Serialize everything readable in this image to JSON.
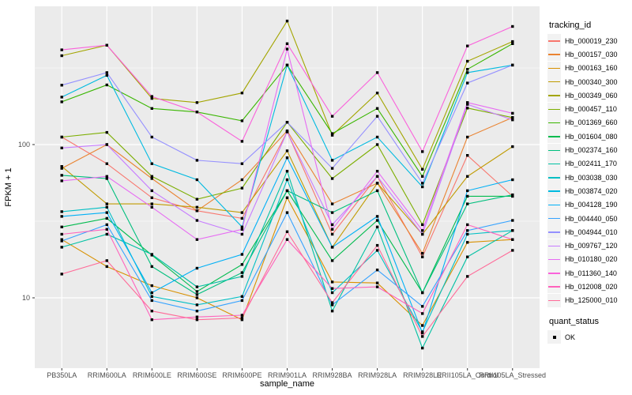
{
  "chart_data": {
    "type": "line",
    "title": "",
    "xlabel": "sample_name",
    "ylabel": "FPKM + 1",
    "y_scale": "log10",
    "y_ticks": [
      10,
      100
    ],
    "y_tick_labels": [
      "10",
      "100"
    ],
    "ylim": [
      3.5,
      800
    ],
    "grid": true,
    "panel_bg": "#EBEBEB",
    "grid_color": "#FFFFFF",
    "point_shape": "square",
    "point_color": "#000000",
    "categories": [
      "PB350LA",
      "RRIM600LA",
      "RRIM600LE",
      "RRIM600SE",
      "RRIM600PE",
      "RRIM901LA",
      "RRIM928BA",
      "RRIM928LA",
      "RRIM928LE",
      "RRII105LA_Control",
      "RRII105LA_Stressed"
    ],
    "series": [
      {
        "name": "Hb_000019_230",
        "color": "#F8766D",
        "values": [
          112,
          75,
          45,
          37,
          33,
          121,
          26,
          62,
          18.5,
          85,
          46
        ]
      },
      {
        "name": "Hb_000157_030",
        "color": "#EA8331",
        "values": [
          70,
          100,
          60,
          37,
          59,
          123,
          41,
          56,
          19.5,
          112,
          150
        ]
      },
      {
        "name": "Hb_000163_160",
        "color": "#D89000",
        "values": [
          24,
          16,
          12,
          10,
          7.2,
          45,
          12.7,
          12.5,
          6.6,
          23,
          24
        ]
      },
      {
        "name": "Hb_000340_300",
        "color": "#C09B00",
        "values": [
          72,
          41,
          41,
          39,
          36,
          91,
          21.4,
          56,
          26,
          62,
          97
        ]
      },
      {
        "name": "Hb_000349_060",
        "color": "#A3A500",
        "values": [
          380,
          445,
          200,
          188,
          217,
          640,
          115,
          217,
          69,
          350,
          470
        ]
      },
      {
        "name": "Hb_000457_110",
        "color": "#7CAE00",
        "values": [
          112,
          120,
          62,
          44,
          52,
          140,
          60,
          100,
          30,
          173,
          150
        ]
      },
      {
        "name": "Hb_001369_660",
        "color": "#39B600",
        "values": [
          190,
          245,
          172,
          163,
          143,
          330,
          118,
          172,
          62,
          310,
          455
        ]
      },
      {
        "name": "Hb_001604_080",
        "color": "#00BB4E",
        "values": [
          29,
          33,
          19,
          11,
          16.5,
          50,
          17.5,
          32,
          10.8,
          46,
          46
        ]
      },
      {
        "name": "Hb_002374_160",
        "color": "#00BF7D",
        "values": [
          63,
          60,
          16,
          10.5,
          14.6,
          50,
          36,
          50,
          10.8,
          41,
          47
        ]
      },
      {
        "name": "Hb_002411_170",
        "color": "#00C1A3",
        "values": [
          21.4,
          26,
          19.2,
          11.8,
          13.8,
          67,
          8.2,
          29,
          4.7,
          18.5,
          27.5
        ]
      },
      {
        "name": "Hb_003038_030",
        "color": "#00BFC4",
        "values": [
          36.5,
          39,
          10.2,
          9,
          10.2,
          59,
          10.8,
          20.4,
          6,
          26,
          27.5
        ]
      },
      {
        "name": "Hb_003874_020",
        "color": "#00BAE0",
        "values": [
          204,
          283,
          75,
          59,
          29,
          330,
          79,
          112,
          53,
          295,
          330
        ]
      },
      {
        "name": "Hb_004128_190",
        "color": "#00B0F6",
        "values": [
          34,
          36,
          10.8,
          15.6,
          19.2,
          82,
          21.4,
          34,
          5.9,
          50,
          59
        ]
      },
      {
        "name": "Hb_004440_050",
        "color": "#35A2FF",
        "values": [
          23.5,
          30,
          9.6,
          8.2,
          9.6,
          36,
          9,
          15.2,
          8.8,
          27.5,
          32
        ]
      },
      {
        "name": "Hb_004944_010",
        "color": "#9590FF",
        "values": [
          244,
          295,
          112,
          79,
          75,
          140,
          70,
          153,
          56,
          252,
          330
        ]
      },
      {
        "name": "Hb_009767_120",
        "color": "#C77CFF",
        "values": [
          95,
          100,
          50,
          32,
          26,
          121,
          30,
          62,
          26,
          183,
          145
        ]
      },
      {
        "name": "Hb_010180_020",
        "color": "#E76BF3",
        "values": [
          58,
          62,
          39,
          24,
          28,
          420,
          28,
          67,
          27.5,
          188,
          160
        ]
      },
      {
        "name": "Hb_011360_140",
        "color": "#FA62DB",
        "values": [
          415,
          445,
          206,
          163,
          105,
          455,
          153,
          295,
          90,
          440,
          590
        ]
      },
      {
        "name": "Hb_012008_020",
        "color": "#FF62BC",
        "values": [
          26,
          28,
          7.2,
          7.5,
          7.7,
          24,
          11.5,
          11.8,
          7.9,
          30,
          24
        ]
      },
      {
        "name": "Hb_125000_010",
        "color": "#FF6A98",
        "values": [
          14.3,
          17.5,
          8.2,
          7.2,
          7.4,
          27,
          9.3,
          22,
          5.6,
          13.8,
          20.4
        ]
      }
    ],
    "legend": {
      "title": "tracking_id",
      "position": "right"
    },
    "legend2": {
      "title": "quant_status",
      "items": [
        {
          "label": "OK"
        }
      ]
    }
  }
}
